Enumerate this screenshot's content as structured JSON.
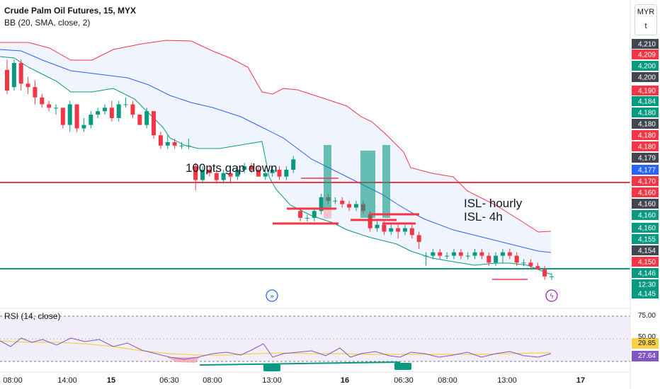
{
  "header": {
    "title": "Crude Palm Oil Futures, 15, MYX",
    "indicator": "BB (20, SMA, close, 2)"
  },
  "scale_button": {
    "line1": "MYR",
    "line2": "t"
  },
  "rsi": {
    "label": "RSI (14, close)",
    "levels": [
      "75.00",
      "50.00"
    ],
    "value1": "29.85",
    "value2": "27.64"
  },
  "annotations": {
    "gap": "100pts gap down",
    "isl_hourly": "ISL- hourly",
    "isl_4h": "ISL- 4h"
  },
  "price_axis": {
    "labels": [
      {
        "v": "4,210",
        "c": "#434651"
      },
      {
        "v": "4,209",
        "c": "#f23645"
      },
      {
        "v": "4,200",
        "c": "#089981"
      },
      {
        "v": "4,200",
        "c": "#434651"
      },
      {
        "v": "4,190",
        "c": "#f23645"
      },
      {
        "v": "4,184",
        "c": "#089981"
      },
      {
        "v": "4,180",
        "c": "#089981"
      },
      {
        "v": "4,180",
        "c": "#434651"
      },
      {
        "v": "4,180",
        "c": "#f23645"
      },
      {
        "v": "4,180",
        "c": "#f23645"
      },
      {
        "v": "4,179",
        "c": "#434651"
      },
      {
        "v": "4,177",
        "c": "#2962ff"
      },
      {
        "v": "4,170",
        "c": "#f23645"
      },
      {
        "v": "4,160",
        "c": "#f23645"
      },
      {
        "v": "4,160",
        "c": "#434651"
      },
      {
        "v": "4,160",
        "c": "#089981"
      },
      {
        "v": "4,160",
        "c": "#089981"
      },
      {
        "v": "4,155",
        "c": "#089981"
      },
      {
        "v": "4,154",
        "c": "#434651"
      },
      {
        "v": "4,150",
        "c": "#f23645"
      },
      {
        "v": "4,146",
        "c": "#089981"
      },
      {
        "v": "12:30",
        "c": "#089981"
      },
      {
        "v": "4,145",
        "c": "#089981"
      }
    ]
  },
  "time_axis": [
    "08:00",
    "14:00",
    "15",
    "06:30",
    "08:00",
    "13:00",
    "16",
    "06:30",
    "08:00",
    "13:00",
    "17"
  ],
  "chart_data": {
    "type": "candlestick",
    "title": "Crude Palm Oil Futures, 15, MYX",
    "ylim": [
      4140,
      4215
    ],
    "x": [
      "08:00",
      "14:00",
      "15",
      "06:30",
      "08:00",
      "13:00",
      "16",
      "06:30",
      "08:00",
      "13:00",
      "17"
    ],
    "horizontal_lines": [
      {
        "name": "",
        "y": 4170,
        "color": "#f23645"
      },
      {
        "name": "",
        "y": 4148,
        "color": "#089981"
      }
    ],
    "candles": [
      {
        "o": 4206,
        "h": 4209,
        "l": 4199,
        "c": 4200
      },
      {
        "o": 4201,
        "h": 4209,
        "l": 4200,
        "c": 4208
      },
      {
        "o": 4208,
        "h": 4209,
        "l": 4200,
        "c": 4202
      },
      {
        "o": 4202,
        "h": 4204,
        "l": 4199,
        "c": 4201
      },
      {
        "o": 4201,
        "h": 4203,
        "l": 4196,
        "c": 4198
      },
      {
        "o": 4198,
        "h": 4199,
        "l": 4195,
        "c": 4196
      },
      {
        "o": 4196,
        "h": 4197,
        "l": 4194,
        "c": 4195
      },
      {
        "o": 4195,
        "h": 4196,
        "l": 4193,
        "c": 4195
      },
      {
        "o": 4195,
        "h": 4195,
        "l": 4189,
        "c": 4190
      },
      {
        "o": 4190,
        "h": 4197,
        "l": 4188,
        "c": 4196
      },
      {
        "o": 4196,
        "h": 4196,
        "l": 4188,
        "c": 4189
      },
      {
        "o": 4189,
        "h": 4192,
        "l": 4188,
        "c": 4190
      },
      {
        "o": 4190,
        "h": 4194,
        "l": 4189,
        "c": 4193
      },
      {
        "o": 4193,
        "h": 4195,
        "l": 4192,
        "c": 4194
      },
      {
        "o": 4194,
        "h": 4196,
        "l": 4193,
        "c": 4195
      },
      {
        "o": 4195,
        "h": 4197,
        "l": 4191,
        "c": 4192
      },
      {
        "o": 4192,
        "h": 4197,
        "l": 4191,
        "c": 4196
      },
      {
        "o": 4196,
        "h": 4198,
        "l": 4195,
        "c": 4196
      },
      {
        "o": 4196,
        "h": 4197,
        "l": 4192,
        "c": 4193
      },
      {
        "o": 4193,
        "h": 4193,
        "l": 4190,
        "c": 4190
      },
      {
        "o": 4190,
        "h": 4195,
        "l": 4189,
        "c": 4194
      },
      {
        "o": 4194,
        "h": 4194,
        "l": 4186,
        "c": 4187
      },
      {
        "o": 4187,
        "h": 4188,
        "l": 4183,
        "c": 4184
      },
      {
        "o": 4184,
        "h": 4187,
        "l": 4183,
        "c": 4185
      },
      {
        "o": 4185,
        "h": 4186,
        "l": 4183,
        "c": 4184
      },
      {
        "o": 4184,
        "h": 4185,
        "l": 4183,
        "c": 4184
      },
      {
        "o": 4184,
        "h": 4186,
        "l": 4183,
        "c": 4184
      },
      {
        "o": 4178,
        "h": 4179,
        "l": 4171,
        "c": 4174
      },
      {
        "o": 4174,
        "h": 4178,
        "l": 4173,
        "c": 4177
      },
      {
        "o": 4177,
        "h": 4178,
        "l": 4175,
        "c": 4176
      },
      {
        "o": 4176,
        "h": 4177,
        "l": 4173,
        "c": 4174
      },
      {
        "o": 4174,
        "h": 4177,
        "l": 4173,
        "c": 4176
      },
      {
        "o": 4176,
        "h": 4177,
        "l": 4173,
        "c": 4175
      },
      {
        "o": 4175,
        "h": 4178,
        "l": 4174,
        "c": 4177
      },
      {
        "o": 4177,
        "h": 4179,
        "l": 4176,
        "c": 4178
      },
      {
        "o": 4178,
        "h": 4179,
        "l": 4176,
        "c": 4177
      },
      {
        "o": 4177,
        "h": 4178,
        "l": 4175,
        "c": 4175
      },
      {
        "o": 4175,
        "h": 4177,
        "l": 4174,
        "c": 4176
      },
      {
        "o": 4176,
        "h": 4178,
        "l": 4175,
        "c": 4177
      },
      {
        "o": 4177,
        "h": 4178,
        "l": 4174,
        "c": 4175
      },
      {
        "o": 4175,
        "h": 4178,
        "l": 4174,
        "c": 4177
      },
      {
        "o": 4177,
        "h": 4181,
        "l": 4176,
        "c": 4180
      },
      {
        "o": 4165,
        "h": 4166,
        "l": 4162,
        "c": 4163
      },
      {
        "o": 4163,
        "h": 4164,
        "l": 4162,
        "c": 4163
      },
      {
        "o": 4163,
        "h": 4166,
        "l": 4162,
        "c": 4165
      },
      {
        "o": 4165,
        "h": 4170,
        "l": 4164,
        "c": 4169
      },
      {
        "o": 4169,
        "h": 4170,
        "l": 4167,
        "c": 4168
      },
      {
        "o": 4168,
        "h": 4169,
        "l": 4167,
        "c": 4168
      },
      {
        "o": 4168,
        "h": 4169,
        "l": 4166,
        "c": 4167
      },
      {
        "o": 4167,
        "h": 4168,
        "l": 4165,
        "c": 4166
      },
      {
        "o": 4166,
        "h": 4168,
        "l": 4165,
        "c": 4167
      },
      {
        "o": 4167,
        "h": 4168,
        "l": 4164,
        "c": 4165
      },
      {
        "o": 4164,
        "h": 4165,
        "l": 4159,
        "c": 4160
      },
      {
        "o": 4160,
        "h": 4162,
        "l": 4159,
        "c": 4161
      },
      {
        "o": 4161,
        "h": 4162,
        "l": 4158,
        "c": 4159
      },
      {
        "o": 4159,
        "h": 4161,
        "l": 4158,
        "c": 4160
      },
      {
        "o": 4160,
        "h": 4161,
        "l": 4157,
        "c": 4159
      },
      {
        "o": 4159,
        "h": 4161,
        "l": 4158,
        "c": 4160
      },
      {
        "o": 4160,
        "h": 4161,
        "l": 4157,
        "c": 4158
      },
      {
        "o": 4158,
        "h": 4159,
        "l": 4154,
        "c": 4156
      },
      {
        "o": 4152,
        "h": 4153,
        "l": 4149,
        "c": 4152
      },
      {
        "o": 4152,
        "h": 4154,
        "l": 4151,
        "c": 4153
      },
      {
        "o": 4153,
        "h": 4154,
        "l": 4151,
        "c": 4152
      },
      {
        "o": 4152,
        "h": 4153,
        "l": 4151,
        "c": 4152
      },
      {
        "o": 4152,
        "h": 4154,
        "l": 4151,
        "c": 4153
      },
      {
        "o": 4153,
        "h": 4154,
        "l": 4151,
        "c": 4152
      },
      {
        "o": 4152,
        "h": 4153,
        "l": 4151,
        "c": 4152
      },
      {
        "o": 4152,
        "h": 4154,
        "l": 4151,
        "c": 4153
      },
      {
        "o": 4153,
        "h": 4154,
        "l": 4151,
        "c": 4152
      },
      {
        "o": 4152,
        "h": 4153,
        "l": 4149,
        "c": 4150
      },
      {
        "o": 4150,
        "h": 4153,
        "l": 4149,
        "c": 4152
      },
      {
        "o": 4152,
        "h": 4154,
        "l": 4150,
        "c": 4153
      },
      {
        "o": 4153,
        "h": 4154,
        "l": 4151,
        "c": 4152
      },
      {
        "o": 4152,
        "h": 4153,
        "l": 4149,
        "c": 4150
      },
      {
        "o": 4150,
        "h": 4151,
        "l": 4149,
        "c": 4150
      },
      {
        "o": 4150,
        "h": 4151,
        "l": 4148,
        "c": 4149
      },
      {
        "o": 4149,
        "h": 4150,
        "l": 4148,
        "c": 4148
      },
      {
        "o": 4148,
        "h": 4149,
        "l": 4145,
        "c": 4146
      },
      {
        "o": 4146,
        "h": 4147,
        "l": 4145,
        "c": 4146
      }
    ]
  }
}
